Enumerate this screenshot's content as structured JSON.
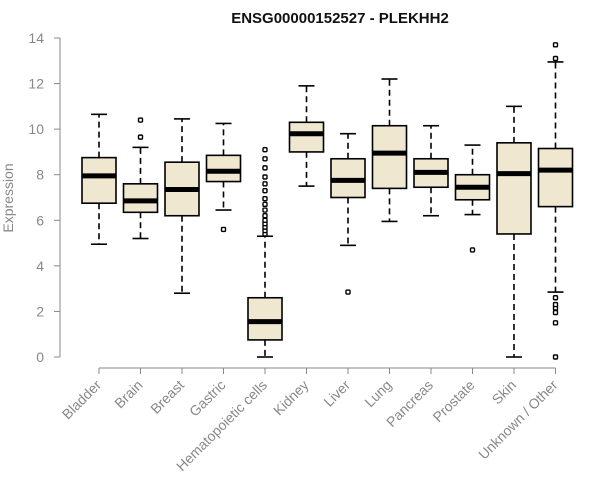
{
  "chart_data": {
    "type": "boxplot",
    "title": "ENSG00000152527 - PLEKHH2",
    "xlabel": "",
    "ylabel": "Expression",
    "ylim": [
      0,
      14
    ],
    "yticks": [
      0,
      2,
      4,
      6,
      8,
      10,
      12,
      14
    ],
    "grid": false,
    "box_fill": "#efe7cf",
    "series": [
      {
        "name": "Bladder",
        "min": 4.95,
        "q1": 6.75,
        "median": 7.95,
        "q3": 8.75,
        "max": 10.65,
        "outliers": []
      },
      {
        "name": "Brain",
        "min": 5.2,
        "q1": 6.35,
        "median": 6.85,
        "q3": 7.6,
        "max": 9.2,
        "outliers": [
          9.65,
          10.4
        ]
      },
      {
        "name": "Breast",
        "min": 2.8,
        "q1": 6.2,
        "median": 7.35,
        "q3": 8.55,
        "max": 10.45,
        "outliers": []
      },
      {
        "name": "Gastric",
        "min": 6.45,
        "q1": 7.7,
        "median": 8.15,
        "q3": 8.85,
        "max": 10.25,
        "outliers": [
          5.6
        ]
      },
      {
        "name": "Hematopoietic cells",
        "min": 0.0,
        "q1": 0.75,
        "median": 1.55,
        "q3": 2.6,
        "max": 5.3,
        "outliers": [
          5.4,
          5.55,
          5.7,
          5.85,
          6.0,
          6.2,
          6.45,
          6.7,
          6.95,
          7.3,
          7.6,
          7.9,
          8.3,
          8.7,
          9.1
        ]
      },
      {
        "name": "Kidney",
        "min": 7.5,
        "q1": 9.0,
        "median": 9.8,
        "q3": 10.3,
        "max": 11.9,
        "outliers": []
      },
      {
        "name": "Liver",
        "min": 4.9,
        "q1": 7.0,
        "median": 7.75,
        "q3": 8.7,
        "max": 9.8,
        "outliers": [
          2.85
        ]
      },
      {
        "name": "Lung",
        "min": 5.95,
        "q1": 7.4,
        "median": 8.95,
        "q3": 10.15,
        "max": 12.2,
        "outliers": []
      },
      {
        "name": "Pancreas",
        "min": 6.2,
        "q1": 7.45,
        "median": 8.1,
        "q3": 8.7,
        "max": 10.15,
        "outliers": []
      },
      {
        "name": "Prostate",
        "min": 6.25,
        "q1": 6.9,
        "median": 7.45,
        "q3": 8.0,
        "max": 9.3,
        "outliers": [
          4.7
        ]
      },
      {
        "name": "Skin",
        "min": 0.0,
        "q1": 5.4,
        "median": 8.05,
        "q3": 9.4,
        "max": 11.0,
        "outliers": []
      },
      {
        "name": "Unknown / Other",
        "min": 2.85,
        "q1": 6.6,
        "median": 8.2,
        "q3": 9.15,
        "max": 12.95,
        "outliers": [
          0.0,
          1.5,
          1.95,
          2.15,
          2.3,
          2.6,
          13.1,
          13.7
        ]
      }
    ]
  }
}
